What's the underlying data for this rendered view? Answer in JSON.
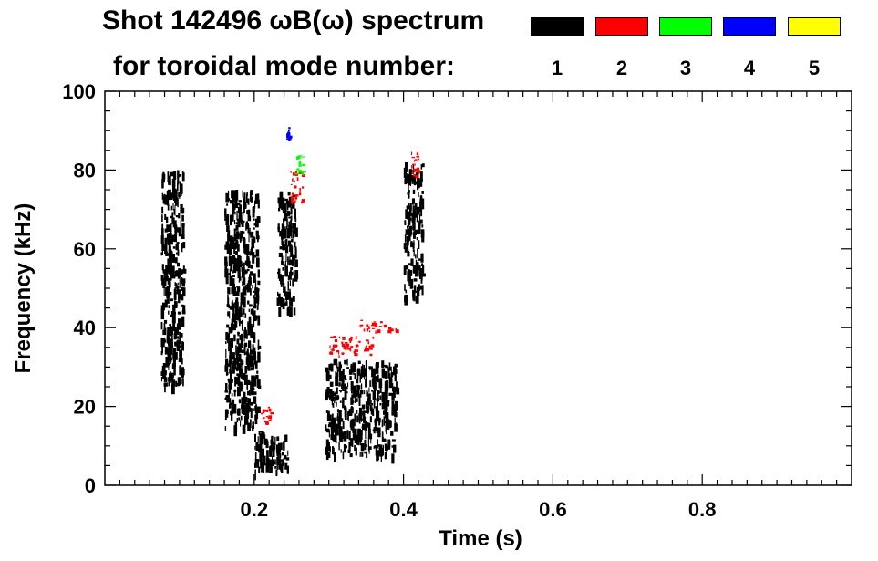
{
  "title": {
    "line1": "Shot 142496 ωB(ω) spectrum",
    "line2": "for toroidal mode number:"
  },
  "legend": [
    {
      "label": "1",
      "color": "#000000"
    },
    {
      "label": "2",
      "color": "#ff0000"
    },
    {
      "label": "3",
      "color": "#00ff00"
    },
    {
      "label": "4",
      "color": "#0000ff"
    },
    {
      "label": "5",
      "color": "#ffff00"
    }
  ],
  "chart_data": {
    "type": "heatmap",
    "xlabel": "Time (s)",
    "ylabel": "Frequency (kHz)",
    "xlim": [
      0.0,
      1.0
    ],
    "ylim": [
      0,
      100
    ],
    "x_ticks": [
      0.2,
      0.4,
      0.6,
      0.8
    ],
    "x_tick_labels": [
      "0.2",
      "0.4",
      "0.6",
      "0.8"
    ],
    "y_ticks": [
      0,
      20,
      40,
      60,
      80,
      100
    ],
    "y_tick_labels": [
      "0",
      "20",
      "40",
      "60",
      "80",
      "100"
    ],
    "series": [
      {
        "name": "1",
        "color": "#000000",
        "regions": [
          {
            "t": [
              0.075,
              0.105
            ],
            "f": [
              25,
              80
            ]
          },
          {
            "t": [
              0.16,
              0.205
            ],
            "f": [
              15,
              75
            ]
          },
          {
            "t": [
              0.2,
              0.245
            ],
            "f": [
              4,
              14
            ]
          },
          {
            "t": [
              0.23,
              0.255
            ],
            "f": [
              45,
              75
            ]
          },
          {
            "t": [
              0.295,
              0.39
            ],
            "f": [
              8,
              32
            ]
          },
          {
            "t": [
              0.4,
              0.425
            ],
            "f": [
              48,
              82
            ]
          }
        ]
      },
      {
        "name": "2",
        "color": "#ff0000",
        "regions": [
          {
            "t": [
              0.208,
              0.222
            ],
            "f": [
              16,
              20
            ]
          },
          {
            "t": [
              0.248,
              0.265
            ],
            "f": [
              72,
              80
            ]
          },
          {
            "t": [
              0.3,
              0.36
            ],
            "f": [
              33,
              38
            ]
          },
          {
            "t": [
              0.34,
              0.39
            ],
            "f": [
              39,
              42
            ]
          },
          {
            "t": [
              0.41,
              0.42
            ],
            "f": [
              78,
              85
            ]
          }
        ]
      },
      {
        "name": "3",
        "color": "#00ff00",
        "regions": [
          {
            "t": [
              0.255,
              0.265
            ],
            "f": [
              79,
              84
            ]
          }
        ]
      },
      {
        "name": "4",
        "color": "#0000ff",
        "regions": [
          {
            "t": [
              0.243,
              0.248
            ],
            "f": [
              88,
              91
            ]
          }
        ]
      }
    ]
  }
}
